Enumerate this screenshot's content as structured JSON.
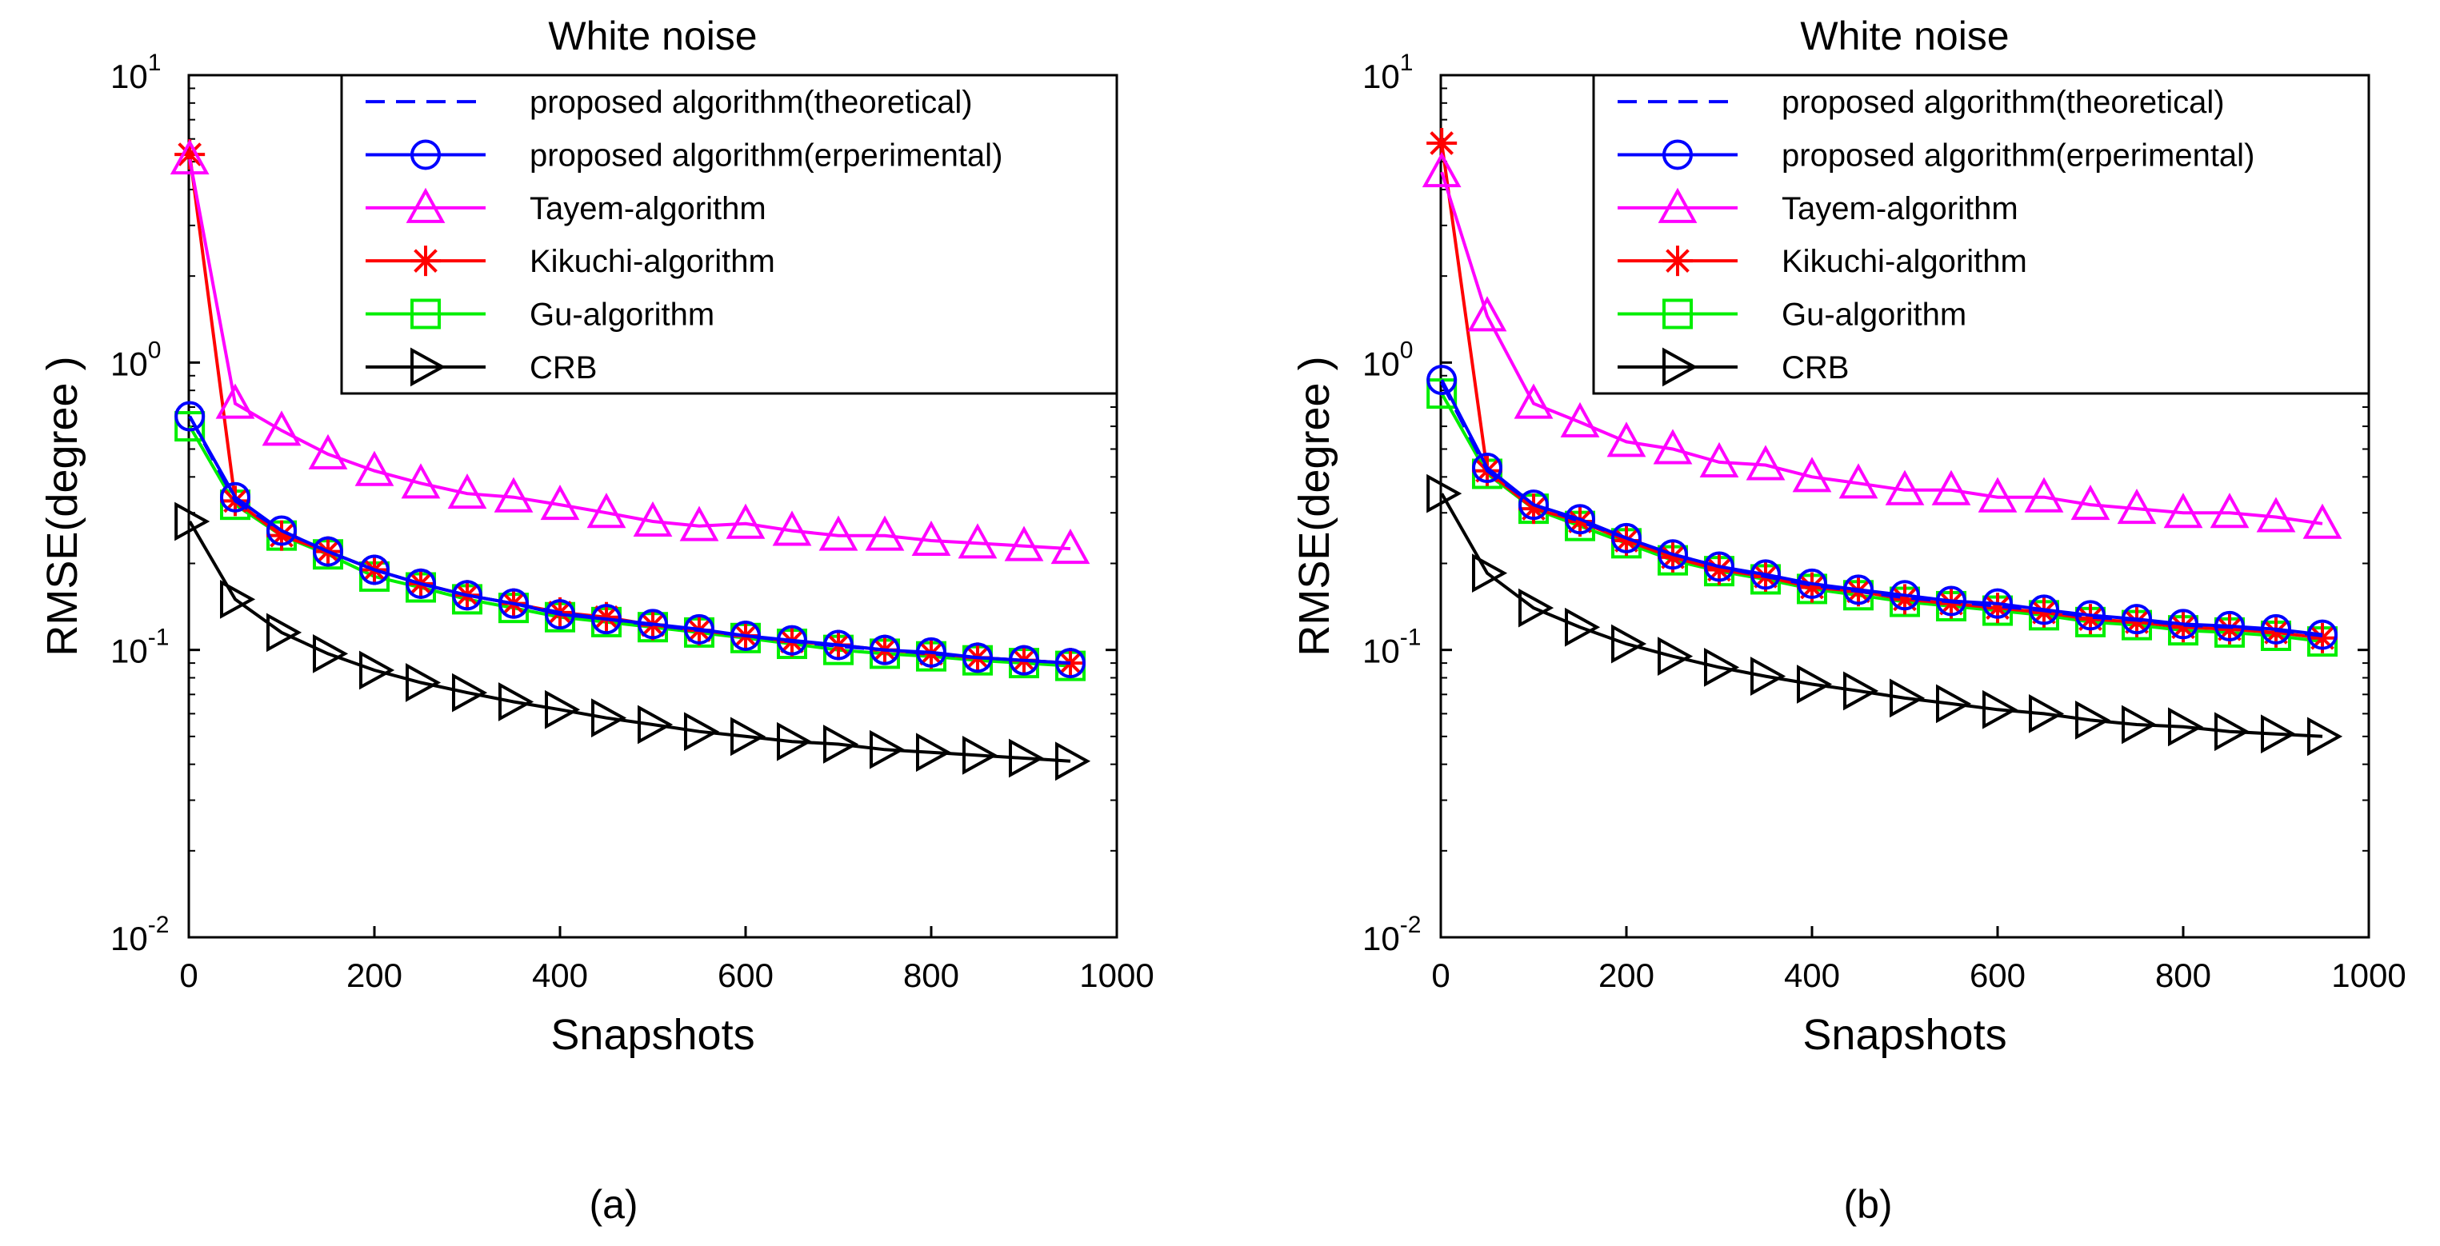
{
  "figure": {
    "panel_labels": [
      "(a)",
      "(b)"
    ]
  },
  "chart_data": [
    {
      "type": "line",
      "title": "White noise",
      "xlabel": "Snapshots",
      "ylabel": "RMSE(degree )",
      "xlim": [
        0,
        1000
      ],
      "ylim": [
        0.01,
        10
      ],
      "yscale": "log",
      "grid": false,
      "legend_position": "top-right",
      "x_ticks": [
        "0",
        "200",
        "400",
        "600",
        "800",
        "1000"
      ],
      "y_ticks": [
        {
          "base": "10",
          "exp": "1"
        },
        {
          "base": "10",
          "exp": "0"
        },
        {
          "base": "10",
          "exp": "-1"
        },
        {
          "base": "10",
          "exp": "-2"
        }
      ],
      "x": [
        1,
        50,
        100,
        150,
        200,
        250,
        300,
        350,
        400,
        450,
        500,
        550,
        600,
        650,
        700,
        750,
        800,
        850,
        900,
        950
      ],
      "series": [
        {
          "name": "proposed algorithm(theoretical)",
          "color": "#0000ff",
          "marker": "none",
          "dash": "dashed",
          "values": [
            0.65,
            0.33,
            0.26,
            0.22,
            0.19,
            0.17,
            0.155,
            0.145,
            0.135,
            0.128,
            0.122,
            0.117,
            0.112,
            0.107,
            0.103,
            0.1,
            0.097,
            0.094,
            0.092,
            0.09
          ]
        },
        {
          "name": "proposed algorithm(erperimental)",
          "color": "#0000ff",
          "marker": "circle",
          "dash": "solid",
          "values": [
            0.65,
            0.34,
            0.26,
            0.22,
            0.19,
            0.17,
            0.155,
            0.145,
            0.133,
            0.128,
            0.123,
            0.118,
            0.112,
            0.108,
            0.104,
            0.1,
            0.098,
            0.094,
            0.092,
            0.09
          ]
        },
        {
          "name": "Tayem-algorithm",
          "color": "#ff00ff",
          "marker": "triangle-up",
          "dash": "solid",
          "values": [
            5.1,
            0.72,
            0.58,
            0.48,
            0.42,
            0.38,
            0.35,
            0.34,
            0.32,
            0.3,
            0.28,
            0.27,
            0.275,
            0.26,
            0.25,
            0.25,
            0.24,
            0.235,
            0.23,
            0.225
          ]
        },
        {
          "name": "Kikuchi-algorithm",
          "color": "#ff0000",
          "marker": "asterisk",
          "dash": "solid",
          "values": [
            5.3,
            0.33,
            0.25,
            0.22,
            0.19,
            0.17,
            0.155,
            0.145,
            0.135,
            0.13,
            0.122,
            0.117,
            0.112,
            0.107,
            0.104,
            0.1,
            0.097,
            0.094,
            0.092,
            0.09
          ]
        },
        {
          "name": "Gu-algorithm",
          "color": "#00ee00",
          "marker": "square",
          "dash": "solid",
          "values": [
            0.6,
            0.32,
            0.25,
            0.215,
            0.18,
            0.165,
            0.15,
            0.14,
            0.13,
            0.125,
            0.12,
            0.115,
            0.11,
            0.105,
            0.1,
            0.097,
            0.095,
            0.092,
            0.09,
            0.088
          ]
        },
        {
          "name": "CRB",
          "color": "#000000",
          "marker": "triangle-right",
          "dash": "solid",
          "values": [
            0.28,
            0.15,
            0.115,
            0.097,
            0.085,
            0.077,
            0.071,
            0.066,
            0.062,
            0.058,
            0.055,
            0.052,
            0.05,
            0.048,
            0.047,
            0.045,
            0.044,
            0.043,
            0.042,
            0.041
          ]
        }
      ]
    },
    {
      "type": "line",
      "title": "White noise",
      "xlabel": "Snapshots",
      "ylabel": "RMSE(degree )",
      "xlim": [
        0,
        1000
      ],
      "ylim": [
        0.01,
        10
      ],
      "yscale": "log",
      "grid": false,
      "legend_position": "top-right",
      "x_ticks": [
        "0",
        "200",
        "400",
        "600",
        "800",
        "1000"
      ],
      "y_ticks": [
        {
          "base": "10",
          "exp": "1"
        },
        {
          "base": "10",
          "exp": "0"
        },
        {
          "base": "10",
          "exp": "-1"
        },
        {
          "base": "10",
          "exp": "-2"
        }
      ],
      "x": [
        1,
        50,
        100,
        150,
        200,
        250,
        300,
        350,
        400,
        450,
        500,
        550,
        600,
        650,
        700,
        750,
        800,
        850,
        900,
        950
      ],
      "series": [
        {
          "name": "proposed algorithm(theoretical)",
          "color": "#0000ff",
          "marker": "none",
          "dash": "dashed",
          "values": [
            0.85,
            0.42,
            0.32,
            0.28,
            0.245,
            0.215,
            0.195,
            0.18,
            0.168,
            0.16,
            0.152,
            0.147,
            0.142,
            0.137,
            0.13,
            0.127,
            0.122,
            0.12,
            0.117,
            0.112
          ]
        },
        {
          "name": "proposed algorithm(erperimental)",
          "color": "#0000ff",
          "marker": "circle",
          "dash": "solid",
          "values": [
            0.87,
            0.43,
            0.32,
            0.285,
            0.245,
            0.215,
            0.195,
            0.183,
            0.17,
            0.162,
            0.155,
            0.148,
            0.145,
            0.138,
            0.132,
            0.128,
            0.123,
            0.121,
            0.118,
            0.113
          ]
        },
        {
          "name": "Tayem-algorithm",
          "color": "#ff00ff",
          "marker": "triangle-up",
          "dash": "solid",
          "values": [
            4.6,
            1.45,
            0.72,
            0.62,
            0.53,
            0.5,
            0.45,
            0.44,
            0.4,
            0.38,
            0.36,
            0.36,
            0.34,
            0.34,
            0.32,
            0.31,
            0.3,
            0.3,
            0.29,
            0.275
          ]
        },
        {
          "name": "Kikuchi-algorithm",
          "color": "#ff0000",
          "marker": "asterisk",
          "dash": "solid",
          "values": [
            5.8,
            0.42,
            0.31,
            0.28,
            0.24,
            0.21,
            0.19,
            0.18,
            0.165,
            0.16,
            0.15,
            0.145,
            0.14,
            0.135,
            0.128,
            0.125,
            0.12,
            0.118,
            0.115,
            0.11
          ]
        },
        {
          "name": "Gu-algorithm",
          "color": "#00ee00",
          "marker": "square",
          "dash": "solid",
          "values": [
            0.78,
            0.41,
            0.31,
            0.27,
            0.235,
            0.205,
            0.188,
            0.176,
            0.163,
            0.155,
            0.147,
            0.142,
            0.137,
            0.132,
            0.125,
            0.122,
            0.117,
            0.115,
            0.112,
            0.107
          ]
        },
        {
          "name": "CRB",
          "color": "#000000",
          "marker": "triangle-right",
          "dash": "solid",
          "values": [
            0.35,
            0.185,
            0.14,
            0.12,
            0.105,
            0.095,
            0.087,
            0.081,
            0.076,
            0.072,
            0.068,
            0.065,
            0.062,
            0.06,
            0.057,
            0.055,
            0.054,
            0.052,
            0.051,
            0.05
          ]
        }
      ]
    }
  ]
}
